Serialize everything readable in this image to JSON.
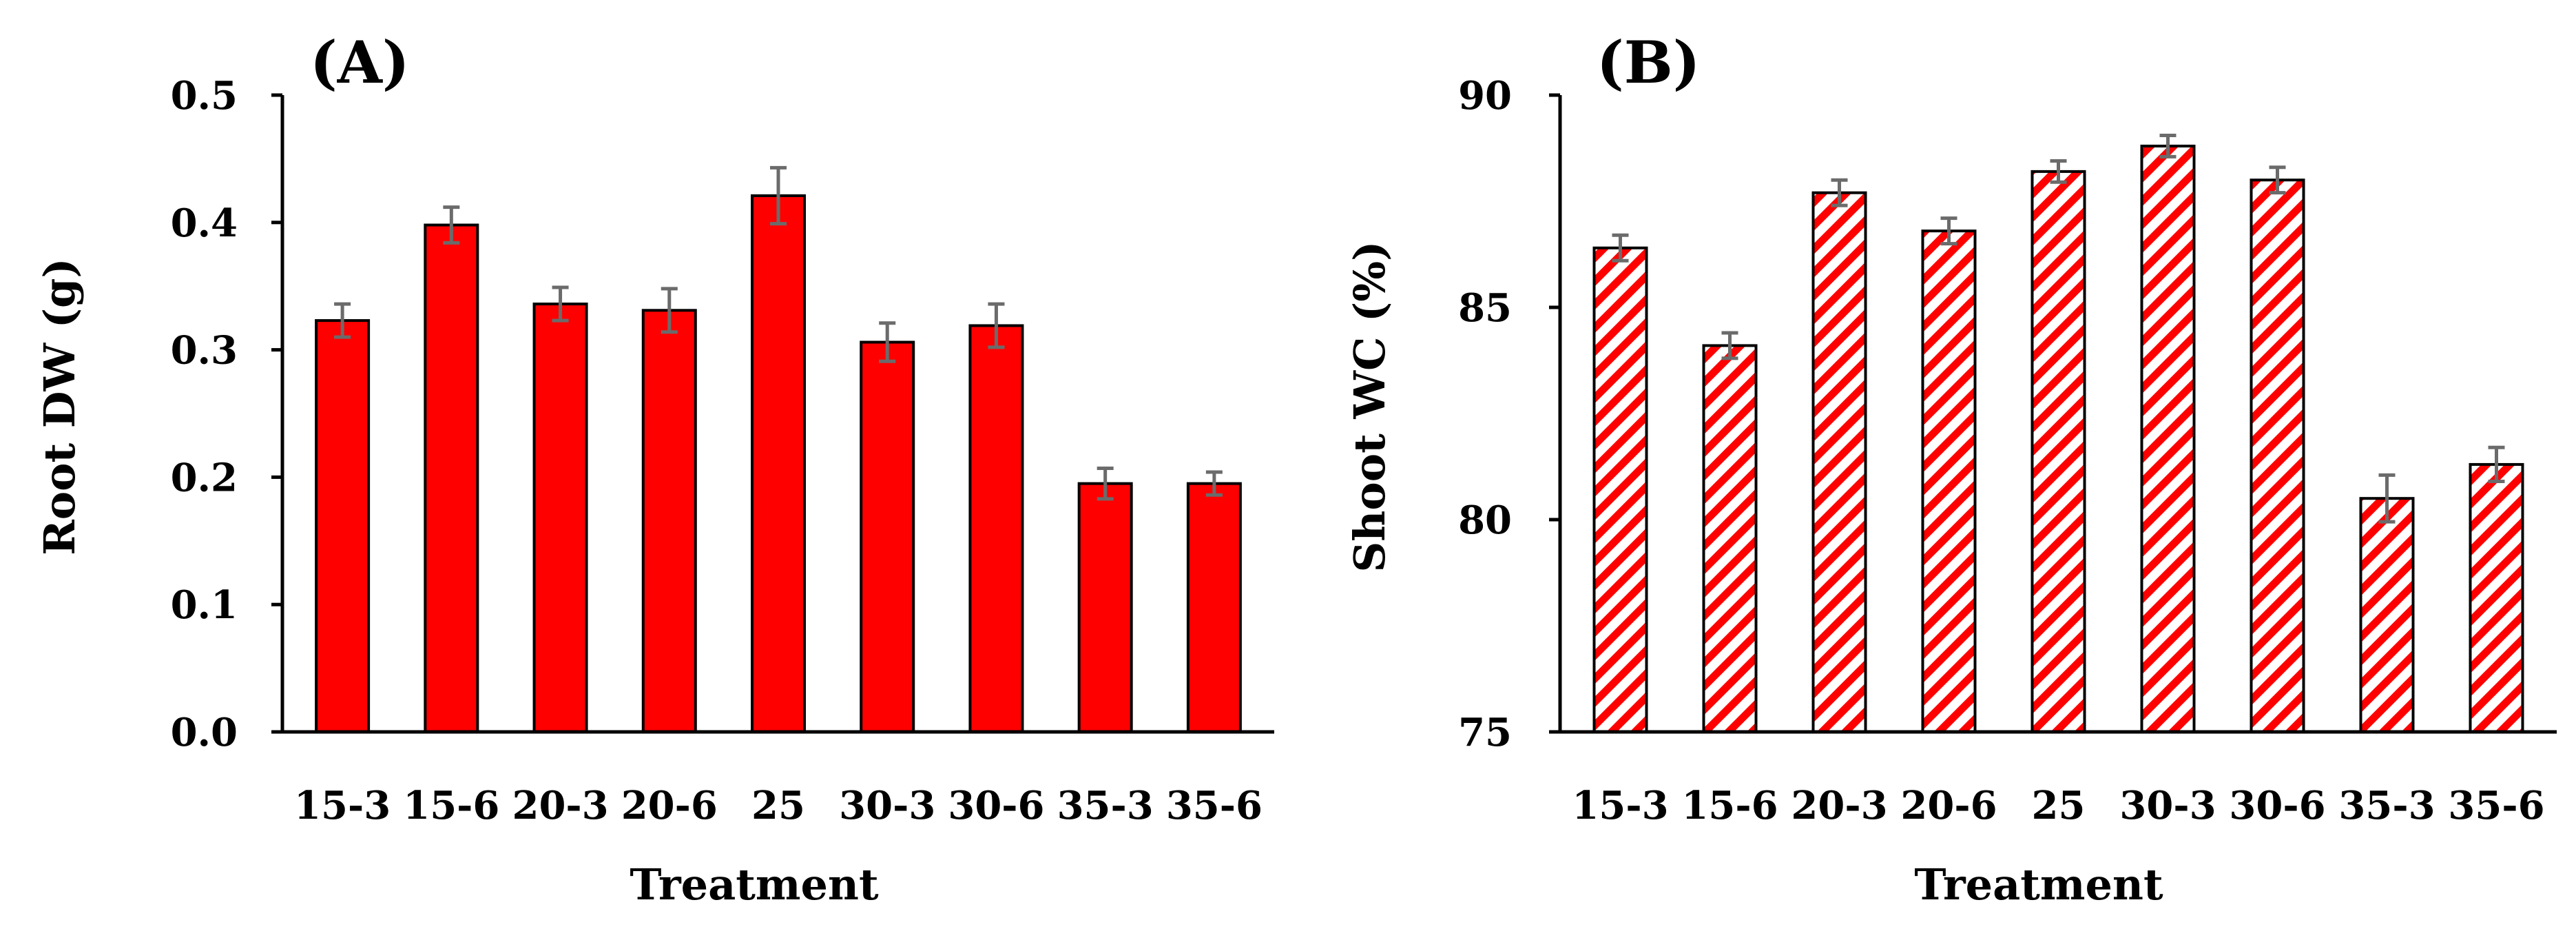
{
  "colors": {
    "bar": "#ff0000",
    "hatch_bg": "#ffffff",
    "error_bar": "#6b6b6b",
    "axis": "#000000"
  },
  "chart_data": [
    {
      "panel_label": "(A)",
      "type": "bar",
      "style": "solid",
      "categories": [
        "15-3",
        "15-6",
        "20-3",
        "20-6",
        "25",
        "30-3",
        "30-6",
        "35-3",
        "35-6"
      ],
      "values": [
        0.323,
        0.398,
        0.336,
        0.331,
        0.421,
        0.306,
        0.319,
        0.195,
        0.195
      ],
      "errors": [
        0.013,
        0.014,
        0.013,
        0.017,
        0.022,
        0.015,
        0.017,
        0.012,
        0.009
      ],
      "ylim": [
        0,
        0.5
      ],
      "yticks": [
        0.0,
        0.1,
        0.2,
        0.3,
        0.4,
        0.5
      ],
      "ytick_labels": [
        "0.0",
        "0.1",
        "0.2",
        "0.3",
        "0.4",
        "0.5"
      ],
      "xlabel": "Treatment",
      "ylabel": "Root DW (g)"
    },
    {
      "panel_label": "(B)",
      "type": "bar",
      "style": "hatched",
      "categories": [
        "15-3",
        "15-6",
        "20-3",
        "20-6",
        "25",
        "30-3",
        "30-6",
        "35-3",
        "35-6"
      ],
      "values": [
        86.4,
        84.1,
        87.7,
        86.8,
        88.2,
        88.8,
        88.0,
        80.5,
        81.3
      ],
      "errors": [
        0.3,
        0.3,
        0.3,
        0.3,
        0.25,
        0.25,
        0.3,
        0.55,
        0.4
      ],
      "ylim": [
        75,
        90
      ],
      "yticks": [
        75,
        80,
        85,
        90
      ],
      "ytick_labels": [
        "75",
        "80",
        "85",
        "90"
      ],
      "xlabel": "Treatment",
      "ylabel": "Shoot WC (%)"
    }
  ]
}
